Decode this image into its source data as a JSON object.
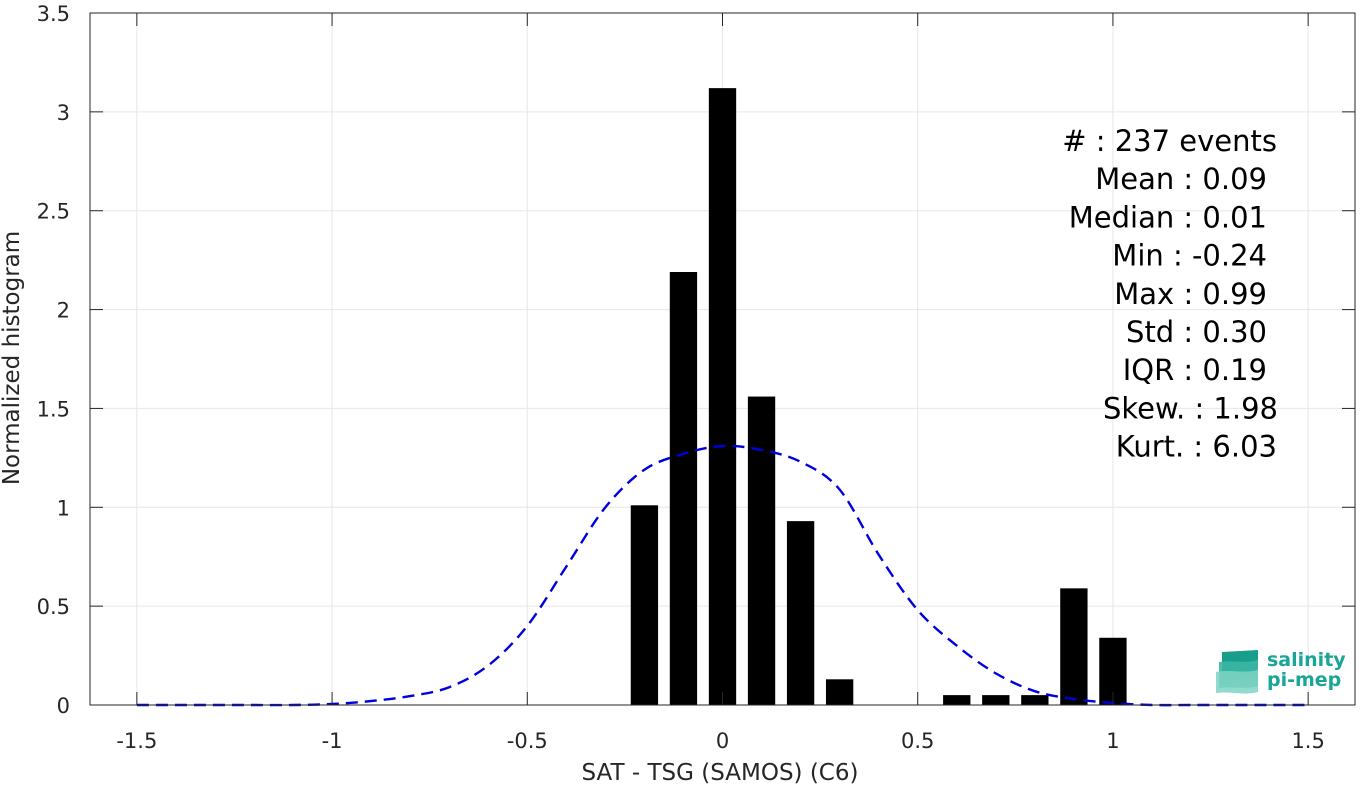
{
  "chart_data": {
    "type": "bar",
    "xlabel": "SAT - TSG (SAMOS) (C6)",
    "ylabel": "Normalized histogram",
    "xlim": [
      -1.62,
      1.62
    ],
    "ylim": [
      0,
      3.5
    ],
    "xticks": [
      -1.5,
      -1,
      -0.5,
      0,
      0.5,
      1,
      1.5
    ],
    "xtick_labels": [
      "-1.5",
      "-1",
      "-0.5",
      "0",
      "0.5",
      "1",
      "1.5"
    ],
    "yticks": [
      0,
      0.5,
      1,
      1.5,
      2,
      2.5,
      3,
      3.5
    ],
    "ytick_labels": [
      "0",
      "0.5",
      "1",
      "1.5",
      "2",
      "2.5",
      "3",
      "3.5"
    ],
    "grid": true,
    "bar_width": 0.07,
    "bars": {
      "x": [
        -0.2,
        -0.1,
        0.0,
        0.1,
        0.2,
        0.3,
        0.6,
        0.7,
        0.8,
        0.9,
        1.0
      ],
      "values": [
        1.01,
        2.19,
        3.12,
        1.56,
        0.93,
        0.13,
        0.05,
        0.05,
        0.05,
        0.59,
        0.34
      ],
      "color": "#000000"
    },
    "fit_curve": {
      "style": "dashed",
      "color": "#0000dd",
      "x": [
        -1.5,
        -1.4,
        -1.3,
        -1.2,
        -1.1,
        -1.0,
        -0.9,
        -0.8,
        -0.7,
        -0.6,
        -0.5,
        -0.4,
        -0.3,
        -0.2,
        -0.1,
        0.0,
        0.1,
        0.2,
        0.3,
        0.4,
        0.5,
        0.6,
        0.7,
        0.8,
        0.9,
        1.0,
        1.1,
        1.2,
        1.3,
        1.4,
        1.5
      ],
      "y": [
        0.0,
        0.0,
        0.0,
        0.0,
        0.0,
        0.005,
        0.02,
        0.045,
        0.09,
        0.2,
        0.4,
        0.7,
        1.0,
        1.19,
        1.27,
        1.31,
        1.29,
        1.23,
        1.09,
        0.76,
        0.48,
        0.3,
        0.16,
        0.07,
        0.03,
        0.01,
        0.0,
        0.0,
        0.0,
        0.0,
        0.0
      ]
    },
    "annotations": [
      "#  : 237 events",
      "Mean : 0.09",
      "Median : 0.01",
      "Min : -0.24",
      "Max : 0.99",
      "Std : 0.30",
      "IQR : 0.19",
      "Skew. : 1.98",
      "Kurt. : 6.03"
    ],
    "logo": {
      "line1": "salinity",
      "line2": "pi-mep",
      "color": "#1aa596"
    }
  }
}
